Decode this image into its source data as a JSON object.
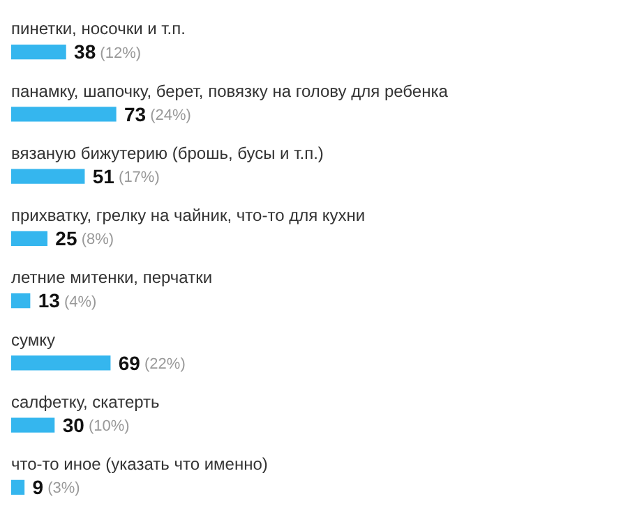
{
  "chart_data": {
    "type": "bar",
    "orientation": "horizontal",
    "categories": [
      "пинетки, носочки и т.п.",
      "панамку, шапочку, берет, повязку на голову для ребенка",
      "вязаную бижутерию (брошь, бусы и т.п.)",
      "прихватку, грелку на чайник, что-то для кухни",
      "летние митенки, перчатки",
      "сумку",
      "салфетку, скатерть",
      "что-то иное (указать что именно)"
    ],
    "values": [
      38,
      73,
      51,
      25,
      13,
      69,
      30,
      9
    ],
    "value_labels": [
      "38 (12%)",
      "73 (24%)",
      "51 (17%)",
      "25 (8%)",
      "13 (4%)",
      "69 (22%)",
      "30 (10%)",
      "9 (3%)"
    ],
    "color": "#35b6ee",
    "legend": false
  }
}
